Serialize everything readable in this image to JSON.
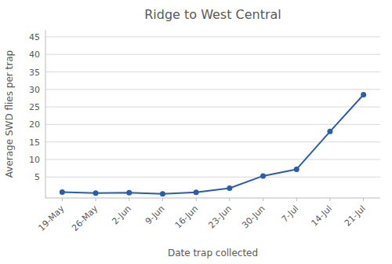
{
  "chart_data": {
    "type": "line",
    "title": "Ridge to West Central",
    "xlabel": "Date trap collected",
    "ylabel": "Average SWD flies per trap",
    "categories": [
      "19-May",
      "26-May",
      "2-Jun",
      "9-Jun",
      "16-Jun",
      "23-Jun",
      "30-Jun",
      "7-Jul",
      "14-Jul",
      "21-Jul"
    ],
    "values": [
      0.7,
      0.4,
      0.5,
      0.2,
      0.6,
      1.8,
      5.3,
      7.2,
      18.0,
      28.5
    ],
    "color": "#2B5DA8",
    "marker": "circle",
    "ylim": [
      -1,
      47
    ],
    "yticks": [
      5,
      10,
      15,
      20,
      25,
      30,
      35,
      40,
      45
    ],
    "grid": true
  }
}
